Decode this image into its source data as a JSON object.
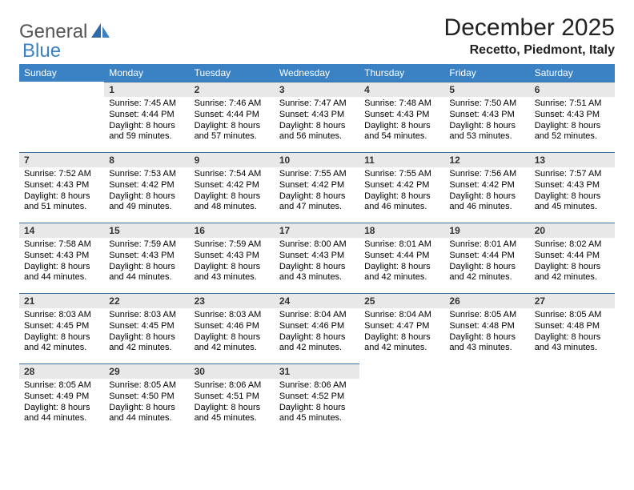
{
  "logo": {
    "part1": "General",
    "part2": "Blue"
  },
  "title": "December 2025",
  "location": "Recetto, Piedmont, Italy",
  "colors": {
    "header_bg": "#3b82c4",
    "header_text": "#ffffff",
    "daynum_bg": "#e8e8e8",
    "daynum_border": "#3b6fa0",
    "body_text": "#000000"
  },
  "fonts": {
    "month_title_size": 30,
    "location_size": 16,
    "dayhdr_size": 12,
    "daynum_size": 12,
    "body_size": 11
  },
  "day_headers": [
    "Sunday",
    "Monday",
    "Tuesday",
    "Wednesday",
    "Thursday",
    "Friday",
    "Saturday"
  ],
  "weeks": [
    [
      {
        "n": "",
        "sr": "",
        "ss": "",
        "dl": "",
        "empty": true
      },
      {
        "n": "1",
        "sr": "Sunrise: 7:45 AM",
        "ss": "Sunset: 4:44 PM",
        "dl": "Daylight: 8 hours and 59 minutes."
      },
      {
        "n": "2",
        "sr": "Sunrise: 7:46 AM",
        "ss": "Sunset: 4:44 PM",
        "dl": "Daylight: 8 hours and 57 minutes."
      },
      {
        "n": "3",
        "sr": "Sunrise: 7:47 AM",
        "ss": "Sunset: 4:43 PM",
        "dl": "Daylight: 8 hours and 56 minutes."
      },
      {
        "n": "4",
        "sr": "Sunrise: 7:48 AM",
        "ss": "Sunset: 4:43 PM",
        "dl": "Daylight: 8 hours and 54 minutes."
      },
      {
        "n": "5",
        "sr": "Sunrise: 7:50 AM",
        "ss": "Sunset: 4:43 PM",
        "dl": "Daylight: 8 hours and 53 minutes."
      },
      {
        "n": "6",
        "sr": "Sunrise: 7:51 AM",
        "ss": "Sunset: 4:43 PM",
        "dl": "Daylight: 8 hours and 52 minutes."
      }
    ],
    [
      {
        "n": "7",
        "sr": "Sunrise: 7:52 AM",
        "ss": "Sunset: 4:43 PM",
        "dl": "Daylight: 8 hours and 51 minutes."
      },
      {
        "n": "8",
        "sr": "Sunrise: 7:53 AM",
        "ss": "Sunset: 4:42 PM",
        "dl": "Daylight: 8 hours and 49 minutes."
      },
      {
        "n": "9",
        "sr": "Sunrise: 7:54 AM",
        "ss": "Sunset: 4:42 PM",
        "dl": "Daylight: 8 hours and 48 minutes."
      },
      {
        "n": "10",
        "sr": "Sunrise: 7:55 AM",
        "ss": "Sunset: 4:42 PM",
        "dl": "Daylight: 8 hours and 47 minutes."
      },
      {
        "n": "11",
        "sr": "Sunrise: 7:55 AM",
        "ss": "Sunset: 4:42 PM",
        "dl": "Daylight: 8 hours and 46 minutes."
      },
      {
        "n": "12",
        "sr": "Sunrise: 7:56 AM",
        "ss": "Sunset: 4:42 PM",
        "dl": "Daylight: 8 hours and 46 minutes."
      },
      {
        "n": "13",
        "sr": "Sunrise: 7:57 AM",
        "ss": "Sunset: 4:43 PM",
        "dl": "Daylight: 8 hours and 45 minutes."
      }
    ],
    [
      {
        "n": "14",
        "sr": "Sunrise: 7:58 AM",
        "ss": "Sunset: 4:43 PM",
        "dl": "Daylight: 8 hours and 44 minutes."
      },
      {
        "n": "15",
        "sr": "Sunrise: 7:59 AM",
        "ss": "Sunset: 4:43 PM",
        "dl": "Daylight: 8 hours and 44 minutes."
      },
      {
        "n": "16",
        "sr": "Sunrise: 7:59 AM",
        "ss": "Sunset: 4:43 PM",
        "dl": "Daylight: 8 hours and 43 minutes."
      },
      {
        "n": "17",
        "sr": "Sunrise: 8:00 AM",
        "ss": "Sunset: 4:43 PM",
        "dl": "Daylight: 8 hours and 43 minutes."
      },
      {
        "n": "18",
        "sr": "Sunrise: 8:01 AM",
        "ss": "Sunset: 4:44 PM",
        "dl": "Daylight: 8 hours and 42 minutes."
      },
      {
        "n": "19",
        "sr": "Sunrise: 8:01 AM",
        "ss": "Sunset: 4:44 PM",
        "dl": "Daylight: 8 hours and 42 minutes."
      },
      {
        "n": "20",
        "sr": "Sunrise: 8:02 AM",
        "ss": "Sunset: 4:44 PM",
        "dl": "Daylight: 8 hours and 42 minutes."
      }
    ],
    [
      {
        "n": "21",
        "sr": "Sunrise: 8:03 AM",
        "ss": "Sunset: 4:45 PM",
        "dl": "Daylight: 8 hours and 42 minutes."
      },
      {
        "n": "22",
        "sr": "Sunrise: 8:03 AM",
        "ss": "Sunset: 4:45 PM",
        "dl": "Daylight: 8 hours and 42 minutes."
      },
      {
        "n": "23",
        "sr": "Sunrise: 8:03 AM",
        "ss": "Sunset: 4:46 PM",
        "dl": "Daylight: 8 hours and 42 minutes."
      },
      {
        "n": "24",
        "sr": "Sunrise: 8:04 AM",
        "ss": "Sunset: 4:46 PM",
        "dl": "Daylight: 8 hours and 42 minutes."
      },
      {
        "n": "25",
        "sr": "Sunrise: 8:04 AM",
        "ss": "Sunset: 4:47 PM",
        "dl": "Daylight: 8 hours and 42 minutes."
      },
      {
        "n": "26",
        "sr": "Sunrise: 8:05 AM",
        "ss": "Sunset: 4:48 PM",
        "dl": "Daylight: 8 hours and 43 minutes."
      },
      {
        "n": "27",
        "sr": "Sunrise: 8:05 AM",
        "ss": "Sunset: 4:48 PM",
        "dl": "Daylight: 8 hours and 43 minutes."
      }
    ],
    [
      {
        "n": "28",
        "sr": "Sunrise: 8:05 AM",
        "ss": "Sunset: 4:49 PM",
        "dl": "Daylight: 8 hours and 44 minutes."
      },
      {
        "n": "29",
        "sr": "Sunrise: 8:05 AM",
        "ss": "Sunset: 4:50 PM",
        "dl": "Daylight: 8 hours and 44 minutes."
      },
      {
        "n": "30",
        "sr": "Sunrise: 8:06 AM",
        "ss": "Sunset: 4:51 PM",
        "dl": "Daylight: 8 hours and 45 minutes."
      },
      {
        "n": "31",
        "sr": "Sunrise: 8:06 AM",
        "ss": "Sunset: 4:52 PM",
        "dl": "Daylight: 8 hours and 45 minutes."
      },
      {
        "n": "",
        "sr": "",
        "ss": "",
        "dl": "",
        "empty": true
      },
      {
        "n": "",
        "sr": "",
        "ss": "",
        "dl": "",
        "empty": true
      },
      {
        "n": "",
        "sr": "",
        "ss": "",
        "dl": "",
        "empty": true
      }
    ]
  ]
}
